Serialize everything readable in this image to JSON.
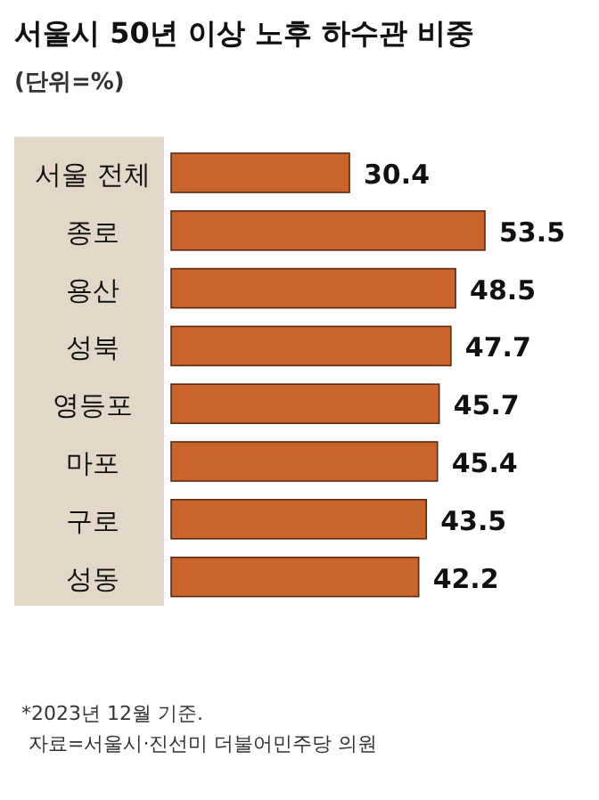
{
  "chart_data": {
    "type": "bar",
    "orientation": "horizontal",
    "title": "서울시 50년 이상 노후 하수관 비중",
    "subtitle": "(단위=%)",
    "categories": [
      "서울 전체",
      "종로",
      "용산",
      "성북",
      "영등포",
      "마포",
      "구로",
      "성동"
    ],
    "values": [
      30.4,
      53.5,
      48.5,
      47.7,
      45.7,
      45.4,
      43.5,
      42.2
    ],
    "color": "#c8642c",
    "data_labels": true,
    "annotations": [
      "*2023년 12월 기준.",
      "자료=서울시·진선미 더불어민주당 의원"
    ]
  }
}
